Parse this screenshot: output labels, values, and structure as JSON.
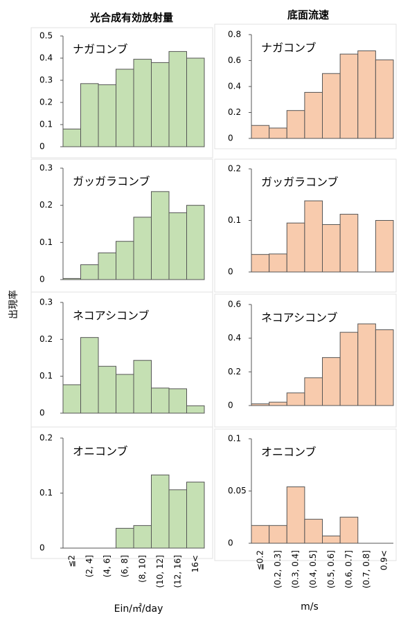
{
  "column_titles": [
    "光合成有効放射量",
    "底面流速"
  ],
  "y_label": "出現率",
  "x_labels": [
    "Ein/㎡/day",
    "m/s"
  ],
  "chart_data": [
    {
      "type": "bar",
      "title": "ナガコンブ",
      "color": "#c5e0b3",
      "ylim": [
        0,
        0.5
      ],
      "yticks": [
        0,
        0.1,
        0.2,
        0.3,
        0.4,
        0.5
      ],
      "values": [
        0.08,
        0.285,
        0.28,
        0.35,
        0.395,
        0.38,
        0.43,
        0.4
      ]
    },
    {
      "type": "bar",
      "title": "ガッガラコンブ",
      "color": "#c5e0b3",
      "ylim": [
        0,
        0.3
      ],
      "yticks": [
        0,
        0.1,
        0.2,
        0.3
      ],
      "values": [
        0.003,
        0.04,
        0.072,
        0.103,
        0.168,
        0.237,
        0.18,
        0.2
      ]
    },
    {
      "type": "bar",
      "title": "ネコアシコンブ",
      "color": "#c5e0b3",
      "ylim": [
        0,
        0.3
      ],
      "yticks": [
        0,
        0.1,
        0.2,
        0.3
      ],
      "values": [
        0.077,
        0.205,
        0.127,
        0.105,
        0.143,
        0.068,
        0.066,
        0.02
      ]
    },
    {
      "type": "bar",
      "title": "オニコンブ",
      "color": "#c5e0b3",
      "ylim": [
        0,
        0.2
      ],
      "yticks": [
        0,
        0.1,
        0.2
      ],
      "values": [
        0,
        0,
        0,
        0.036,
        0.041,
        0.133,
        0.106,
        0.12
      ],
      "categories": [
        "≦2",
        "(2, 4]",
        "(4, 6]",
        "(6, 8]",
        "(8, 10]",
        "(10, 12]",
        "(12, 16]",
        "16<"
      ]
    },
    {
      "type": "bar",
      "title": "ナガコンブ",
      "color": "#f8cbad",
      "ylim": [
        0,
        0.8
      ],
      "yticks": [
        0,
        0.2,
        0.4,
        0.6,
        0.8
      ],
      "values": [
        0.1,
        0.08,
        0.215,
        0.355,
        0.5,
        0.65,
        0.675,
        0.605
      ]
    },
    {
      "type": "bar",
      "title": "ガッガラコンブ",
      "color": "#f8cbad",
      "ylim": [
        0,
        0.2
      ],
      "yticks": [
        0,
        0.1,
        0.2
      ],
      "values": [
        0.034,
        0.035,
        0.095,
        0.138,
        0.092,
        0.112,
        0,
        0.1
      ]
    },
    {
      "type": "bar",
      "title": "ネコアシコンブ",
      "color": "#f8cbad",
      "ylim": [
        0,
        0.6
      ],
      "yticks": [
        0,
        0.2,
        0.4,
        0.6
      ],
      "values": [
        0.01,
        0.02,
        0.075,
        0.165,
        0.285,
        0.435,
        0.485,
        0.45
      ]
    },
    {
      "type": "bar",
      "title": "オニコンブ",
      "color": "#f8cbad",
      "ylim": [
        0,
        0.1
      ],
      "yticks": [
        0,
        0.05,
        0.1
      ],
      "values": [
        0.017,
        0.017,
        0.054,
        0.023,
        0.007,
        0.025,
        0,
        0
      ],
      "categories": [
        "≦0.2",
        "(0.2, 0.3]",
        "(0.3, 0.4]",
        "(0.4, 0.5]",
        "(0.5, 0.6]",
        "(0.6, 0.7]",
        "(0.7, 0.8]",
        "0.9<"
      ]
    }
  ]
}
